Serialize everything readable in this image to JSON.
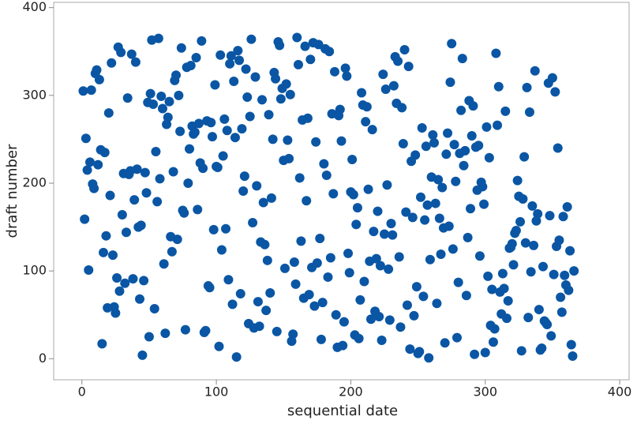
{
  "chart_data": {
    "type": "scatter",
    "xlabel": "sequential date",
    "ylabel": "draft number",
    "color": "#0a56a4",
    "xlim": [
      -21,
      407
    ],
    "ylim": [
      -24,
      406
    ],
    "xticks": [
      0,
      100,
      200,
      300,
      400
    ],
    "yticks": [
      0,
      100,
      200,
      300,
      400
    ],
    "x": [
      1,
      2,
      3,
      4,
      5,
      6,
      7,
      8,
      9,
      10,
      11,
      12,
      13,
      14,
      15,
      16,
      17,
      18,
      19,
      20,
      21,
      22,
      23,
      24,
      25,
      26,
      27,
      28,
      29,
      30,
      31,
      32,
      33,
      34,
      35,
      36,
      37,
      38,
      39,
      40,
      41,
      42,
      43,
      44,
      45,
      46,
      47,
      48,
      49,
      50,
      51,
      52,
      53,
      54,
      55,
      56,
      57,
      58,
      59,
      60,
      61,
      62,
      63,
      64,
      65,
      66,
      67,
      68,
      69,
      70,
      71,
      72,
      73,
      74,
      75,
      76,
      77,
      78,
      79,
      80,
      81,
      82,
      83,
      84,
      85,
      86,
      87,
      88,
      89,
      90,
      91,
      92,
      93,
      94,
      95,
      96,
      97,
      98,
      99,
      100,
      101,
      102,
      103,
      104,
      105,
      106,
      107,
      108,
      109,
      110,
      111,
      112,
      113,
      114,
      115,
      116,
      117,
      118,
      119,
      120,
      121,
      122,
      123,
      124,
      125,
      126,
      127,
      128,
      129,
      130,
      131,
      132,
      133,
      134,
      135,
      136,
      137,
      138,
      139,
      140,
      141,
      142,
      143,
      144,
      145,
      146,
      147,
      148,
      149,
      150,
      151,
      152,
      153,
      154,
      155,
      156,
      157,
      158,
      159,
      160,
      161,
      162,
      163,
      164,
      165,
      166,
      167,
      168,
      169,
      170,
      171,
      172,
      173,
      174,
      175,
      176,
      177,
      178,
      179,
      180,
      181,
      182,
      183,
      184,
      185,
      186,
      187,
      188,
      189,
      190,
      191,
      192,
      193,
      194,
      195,
      196,
      197,
      198,
      199,
      200,
      201,
      202,
      203,
      204,
      205,
      206,
      207,
      208,
      209,
      210,
      211,
      212,
      213,
      214,
      215,
      216,
      217,
      218,
      219,
      220,
      221,
      222,
      223,
      224,
      225,
      226,
      227,
      228,
      229,
      230,
      231,
      232,
      233,
      234,
      235,
      236,
      237,
      238,
      239,
      240,
      241,
      242,
      243,
      244,
      245,
      246,
      247,
      248,
      249,
      250,
      251,
      252,
      253,
      254,
      255,
      256,
      257,
      258,
      259,
      260,
      261,
      262,
      263,
      264,
      265,
      266,
      267,
      268,
      269,
      270,
      271,
      272,
      273,
      274,
      275,
      276,
      277,
      278,
      279,
      280,
      281,
      282,
      283,
      284,
      285,
      286,
      287,
      288,
      289,
      290,
      291,
      292,
      293,
      294,
      295,
      296,
      297,
      298,
      299,
      300,
      301,
      302,
      303,
      304,
      305,
      306,
      307,
      308,
      309,
      310,
      311,
      312,
      313,
      314,
      315,
      316,
      317,
      318,
      319,
      320,
      321,
      322,
      323,
      324,
      325,
      326,
      327,
      328,
      329,
      330,
      331,
      332,
      333,
      334,
      335,
      336,
      337,
      338,
      339,
      340,
      341,
      342,
      343,
      344,
      345,
      346,
      347,
      348,
      349,
      350,
      351,
      352,
      353,
      354,
      355,
      356,
      357,
      358,
      359,
      360,
      361,
      362,
      363,
      364,
      365,
      366
    ],
    "values": [
      305,
      159,
      251,
      215,
      101,
      224,
      306,
      199,
      194,
      325,
      329,
      221,
      318,
      238,
      17,
      121,
      235,
      140,
      58,
      280,
      186,
      337,
      118,
      59,
      52,
      92,
      355,
      77,
      349,
      164,
      211,
      86,
      144,
      297,
      210,
      214,
      347,
      91,
      181,
      338,
      216,
      150,
      68,
      152,
      4,
      89,
      212,
      189,
      292,
      25,
      302,
      363,
      290,
      57,
      236,
      179,
      365,
      205,
      299,
      285,
      108,
      29,
      267,
      275,
      293,
      139,
      122,
      213,
      317,
      323,
      136,
      300,
      259,
      354,
      169,
      166,
      33,
      332,
      200,
      239,
      334,
      265,
      256,
      258,
      343,
      170,
      268,
      223,
      362,
      217,
      30,
      32,
      271,
      83,
      81,
      269,
      253,
      147,
      312,
      219,
      218,
      14,
      346,
      124,
      231,
      273,
      148,
      260,
      90,
      336,
      345,
      62,
      316,
      252,
      2,
      351,
      340,
      74,
      262,
      191,
      208,
      330,
      298,
      40,
      276,
      364,
      155,
      35,
      321,
      197,
      65,
      37,
      133,
      295,
      178,
      130,
      55,
      112,
      278,
      75,
      183,
      250,
      326,
      319,
      31,
      361,
      357,
      296,
      308,
      226,
      103,
      313,
      249,
      228,
      301,
      20,
      28,
      110,
      85,
      366,
      335,
      206,
      134,
      272,
      69,
      356,
      180,
      274,
      73,
      341,
      104,
      360,
      60,
      247,
      109,
      358,
      137,
      22,
      64,
      222,
      353,
      209,
      93,
      350,
      115,
      279,
      188,
      327,
      50,
      13,
      277,
      284,
      248,
      15,
      42,
      331,
      322,
      120,
      98,
      190,
      227,
      187,
      27,
      153,
      172,
      23,
      67,
      303,
      289,
      88,
      270,
      287,
      193,
      111,
      45,
      261,
      145,
      54,
      114,
      168,
      48,
      106,
      21,
      324,
      142,
      307,
      198,
      102,
      44,
      154,
      141,
      311,
      344,
      291,
      339,
      116,
      36,
      286,
      245,
      352,
      167,
      61,
      333,
      11,
      225,
      161,
      49,
      232,
      82,
      6,
      8,
      184,
      263,
      71,
      158,
      242,
      175,
      1,
      113,
      207,
      255,
      246,
      177,
      63,
      204,
      160,
      119,
      195,
      149,
      18,
      233,
      257,
      151,
      315,
      359,
      125,
      244,
      202,
      24,
      87,
      234,
      283,
      342,
      220,
      237,
      72,
      138,
      294,
      171,
      254,
      288,
      5,
      241,
      192,
      243,
      117,
      201,
      196,
      176,
      7,
      264,
      94,
      229,
      38,
      79,
      19,
      34,
      348,
      266,
      310,
      76,
      51,
      97,
      80,
      282,
      46,
      66,
      126,
      127,
      131,
      107,
      143,
      146,
      203,
      185,
      156,
      9,
      182,
      230,
      132,
      309,
      47,
      281,
      99,
      174,
      129,
      328,
      157,
      165,
      56,
      10,
      12,
      105,
      43,
      41,
      39,
      314,
      163,
      26,
      320,
      96,
      304,
      128,
      240,
      135,
      70,
      53,
      162,
      95,
      84,
      173,
      78,
      123,
      16,
      3,
      100
    ]
  }
}
